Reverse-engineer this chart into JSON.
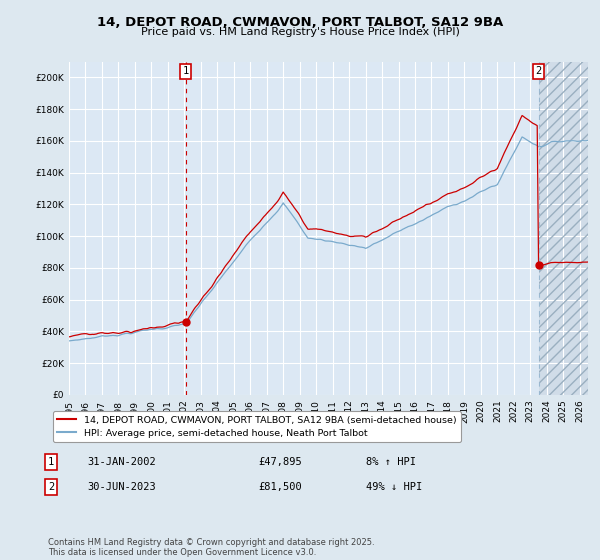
{
  "title_line1": "14, DEPOT ROAD, CWMAVON, PORT TALBOT, SA12 9BA",
  "title_line2": "Price paid vs. HM Land Registry's House Price Index (HPI)",
  "ylabel_vals": [
    0,
    20000,
    40000,
    60000,
    80000,
    100000,
    120000,
    140000,
    160000,
    180000,
    200000
  ],
  "ylim": [
    0,
    210000
  ],
  "xlim_start": 1995.0,
  "xlim_end": 2026.5,
  "vline1_x": 2002.083,
  "vline2_x": 2023.5,
  "sale1_date": "31-JAN-2002",
  "sale1_price": "£47,895",
  "sale1_hpi": "8% ↑ HPI",
  "sale2_date": "30-JUN-2023",
  "sale2_price": "£81,500",
  "sale2_hpi": "49% ↓ HPI",
  "legend_red": "14, DEPOT ROAD, CWMAVON, PORT TALBOT, SA12 9BA (semi-detached house)",
  "legend_blue": "HPI: Average price, semi-detached house, Neath Port Talbot",
  "footnote": "Contains HM Land Registry data © Crown copyright and database right 2025.\nThis data is licensed under the Open Government Licence v3.0.",
  "red_color": "#cc0000",
  "blue_color": "#7aaacc",
  "bg_color": "#dde8f0",
  "plot_bg": "#dce8f4",
  "grid_color": "#ffffff",
  "hatch_color": "#c8d4e0"
}
